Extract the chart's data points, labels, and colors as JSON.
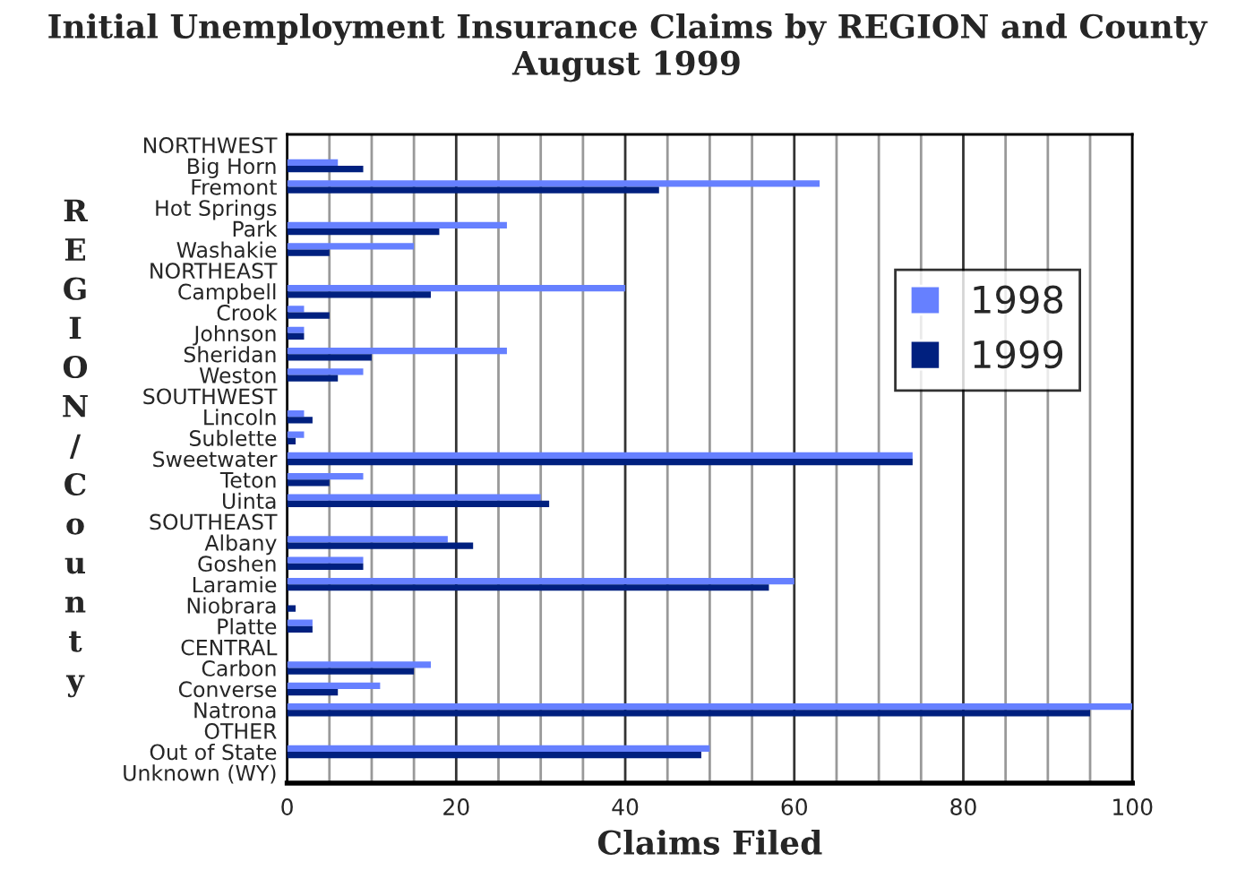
{
  "chart_data": {
    "type": "bar",
    "orientation": "horizontal",
    "title": "Initial Unemployment Insurance Claims by REGION and County\nAugust 1999",
    "xlabel": "Claims Filed",
    "ylabel": "REGION/County",
    "categories": [
      "NORTHWEST",
      "Big Horn",
      "Fremont",
      "Hot Springs",
      "Park",
      "Washakie",
      "NORTHEAST",
      "Campbell",
      "Crook",
      "Johnson",
      "Sheridan",
      "Weston",
      "SOUTHWEST",
      "Lincoln",
      "Sublette",
      "Sweetwater",
      "Teton",
      "Uinta",
      "SOUTHEAST",
      "Albany",
      "Goshen",
      "Laramie",
      "Niobrara",
      "Platte",
      "CENTRAL",
      "Carbon",
      "Converse",
      "Natrona",
      "OTHER",
      "Out of State",
      "Unknown (WY)"
    ],
    "series": [
      {
        "name": "1998",
        "color": "#6680ff",
        "values": [
          null,
          6,
          63,
          0,
          26,
          15,
          null,
          40,
          2,
          2,
          26,
          9,
          null,
          2,
          2,
          74,
          9,
          30,
          null,
          19,
          9,
          60,
          0,
          3,
          null,
          17,
          11,
          100,
          null,
          50,
          0
        ]
      },
      {
        "name": "1999",
        "color": "#00207f",
        "values": [
          null,
          9,
          44,
          0,
          18,
          5,
          null,
          17,
          5,
          2,
          10,
          6,
          null,
          3,
          1,
          74,
          5,
          31,
          null,
          22,
          9,
          57,
          1,
          3,
          null,
          15,
          6,
          95,
          null,
          49,
          0
        ]
      }
    ],
    "xlim": [
      0,
      100
    ],
    "xticks": [
      0,
      {
        "value": 5,
        "label": null
      },
      {
        "value": 10,
        "label": null
      },
      {
        "value": 15,
        "label": null
      },
      20,
      {
        "value": 25,
        "label": null
      },
      {
        "value": 30,
        "label": null
      },
      {
        "value": 35,
        "label": null
      },
      40,
      {
        "value": 45,
        "label": null
      },
      {
        "value": 50,
        "label": null
      },
      {
        "value": 55,
        "label": null
      },
      60,
      {
        "value": 65,
        "label": null
      },
      {
        "value": 70,
        "label": null
      },
      {
        "value": 75,
        "label": null
      },
      80,
      {
        "value": 85,
        "label": null
      },
      {
        "value": 90,
        "label": null
      },
      {
        "value": 95,
        "label": null
      },
      100
    ],
    "grid": "x",
    "legend": "right"
  }
}
